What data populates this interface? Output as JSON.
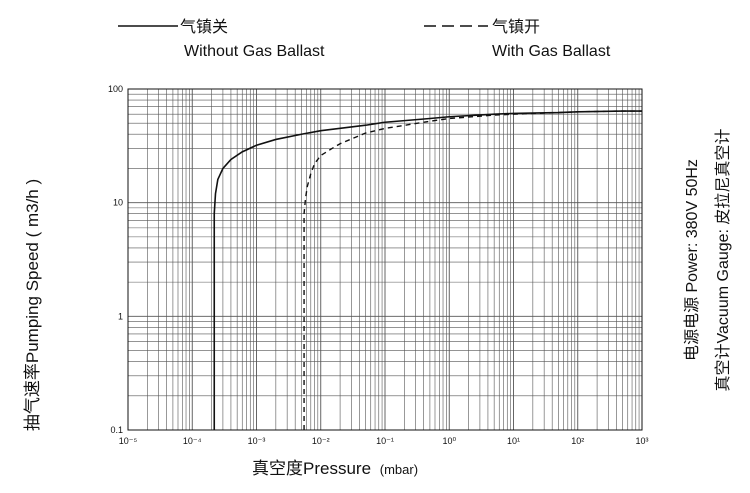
{
  "chart_data": {
    "type": "line",
    "title": "",
    "xlabel_main": "真空度Pressure",
    "xlabel_unit": "(mbar)",
    "ylabel": "抽气速率Pumping Speed ( m3/h )",
    "x_scale": "log",
    "y_scale": "log",
    "xlim": [
      1e-05,
      1000
    ],
    "ylim": [
      0.1,
      100
    ],
    "x_ticks": [
      {
        "value": 1e-05,
        "label": "10⁻⁵"
      },
      {
        "value": 0.0001,
        "label": "10⁻⁴"
      },
      {
        "value": 0.001,
        "label": "10⁻³"
      },
      {
        "value": 0.01,
        "label": "10⁻²"
      },
      {
        "value": 0.1,
        "label": "10⁻¹"
      },
      {
        "value": 1,
        "label": "10⁰"
      },
      {
        "value": 10,
        "label": "10¹"
      },
      {
        "value": 100,
        "label": "10²"
      },
      {
        "value": 1000,
        "label": "10³"
      }
    ],
    "y_ticks": [
      {
        "value": 0.1,
        "label": "0.1"
      },
      {
        "value": 1,
        "label": "1"
      },
      {
        "value": 10,
        "label": "10"
      },
      {
        "value": 100,
        "label": "100"
      }
    ],
    "grid": true,
    "legend_position": "top",
    "series": [
      {
        "name_cn": "气镇关",
        "name_en": "Without Gas Ballast",
        "style": "solid",
        "x": [
          0.00022,
          0.00022,
          0.00023,
          0.00025,
          0.0003,
          0.0004,
          0.0006,
          0.001,
          0.002,
          0.005,
          0.01,
          0.05,
          0.1,
          0.5,
          1,
          5,
          10,
          50,
          100,
          500,
          1000
        ],
        "y": [
          0.1,
          8,
          12,
          16,
          20,
          24,
          28,
          32,
          36,
          40,
          43,
          48,
          51,
          55,
          57,
          60,
          61,
          62,
          63,
          64,
          64
        ]
      },
      {
        "name_cn": "气镇开",
        "name_en": "With Gas Ballast",
        "style": "dashed",
        "x": [
          0.0055,
          0.0055,
          0.0058,
          0.0062,
          0.007,
          0.008,
          0.01,
          0.015,
          0.02,
          0.05,
          0.1,
          0.5,
          1,
          5,
          10,
          50,
          100,
          500,
          1000
        ],
        "y": [
          0.1,
          8,
          11,
          14,
          18,
          22,
          26,
          30,
          33,
          41,
          45,
          52,
          55,
          59,
          60,
          62,
          63,
          64,
          64
        ]
      }
    ]
  },
  "notes": {
    "power": "电源电源  Power:  380V 50Hz",
    "gauge": "真空计Vacuum Gauge:  皮拉尼真空计"
  },
  "colors": {
    "line": "#111111",
    "grid": "#555555",
    "frame": "#111111"
  }
}
